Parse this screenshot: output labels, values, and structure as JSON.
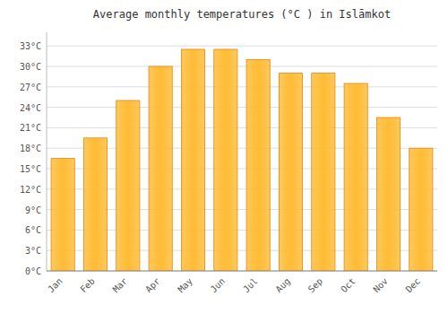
{
  "chart_data": {
    "type": "bar",
    "title": "Average monthly temperatures (°C ) in Islāmkot",
    "categories": [
      "Jan",
      "Feb",
      "Mar",
      "Apr",
      "May",
      "Jun",
      "Jul",
      "Aug",
      "Sep",
      "Oct",
      "Nov",
      "Dec"
    ],
    "values": [
      16.5,
      19.5,
      25.0,
      30.0,
      32.5,
      32.5,
      31.0,
      29.0,
      29.0,
      27.5,
      22.5,
      18.0
    ],
    "color": "#FFBB33",
    "ylim": [
      0,
      35
    ],
    "yticks": [
      {
        "value": 0,
        "label": "0°C"
      },
      {
        "value": 3,
        "label": "3°C"
      },
      {
        "value": 6,
        "label": "6°C"
      },
      {
        "value": 9,
        "label": "9°C"
      },
      {
        "value": 12,
        "label": "12°C"
      },
      {
        "value": 15,
        "label": "15°C"
      },
      {
        "value": 18,
        "label": "18°C"
      },
      {
        "value": 21,
        "label": "21°C"
      },
      {
        "value": 24,
        "label": "24°C"
      },
      {
        "value": 27,
        "label": "27°C"
      },
      {
        "value": 30,
        "label": "30°C"
      },
      {
        "value": 33,
        "label": "33°C"
      }
    ],
    "grid": true
  }
}
